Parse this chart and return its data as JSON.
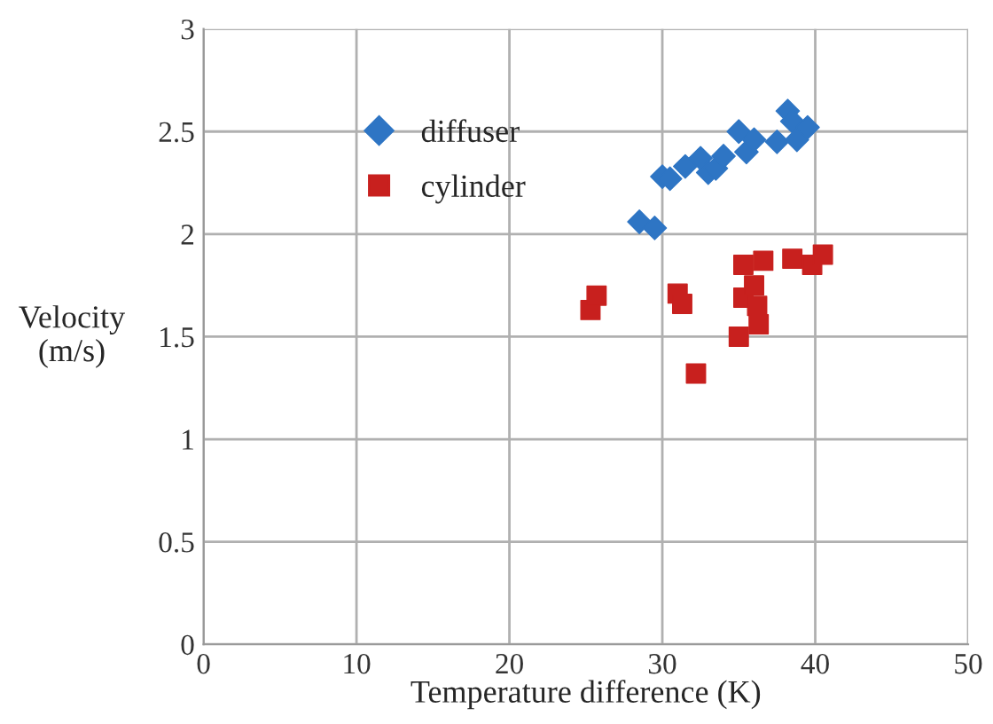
{
  "chart_data": {
    "type": "scatter",
    "xlabel": "Temperature difference (K)",
    "ylabel": "Velocity\n(m/s)",
    "xlim": [
      0,
      50
    ],
    "xticks": [
      0,
      10,
      20,
      30,
      40,
      50
    ],
    "ylim": [
      0,
      3
    ],
    "yticks": [
      0,
      0.5,
      1,
      1.5,
      2,
      2.5,
      3
    ],
    "grid": true,
    "legend": "top left",
    "series": [
      {
        "name": "diffuser",
        "color": "#2e75c4",
        "marker": "diamond",
        "x": [
          28.5,
          29.5,
          30,
          30.5,
          31.5,
          32.5,
          33,
          33.5,
          34,
          35,
          35.5,
          36,
          37.5,
          38.2,
          38.5,
          38.8,
          39.5
        ],
        "values": [
          2.06,
          2.03,
          2.28,
          2.27,
          2.33,
          2.37,
          2.3,
          2.32,
          2.38,
          2.5,
          2.4,
          2.46,
          2.45,
          2.6,
          2.55,
          2.46,
          2.52
        ]
      },
      {
        "name": "cylinder",
        "color": "#c8201e",
        "marker": "square",
        "x": [
          25.3,
          25.7,
          31,
          31.3,
          32.2,
          35,
          35.3,
          35.3,
          36,
          36.2,
          36.3,
          36.6,
          38.5,
          39.8,
          40.5
        ],
        "values": [
          1.63,
          1.7,
          1.71,
          1.66,
          1.32,
          1.5,
          1.69,
          1.85,
          1.75,
          1.65,
          1.56,
          1.87,
          1.88,
          1.85,
          1.9
        ]
      }
    ]
  }
}
